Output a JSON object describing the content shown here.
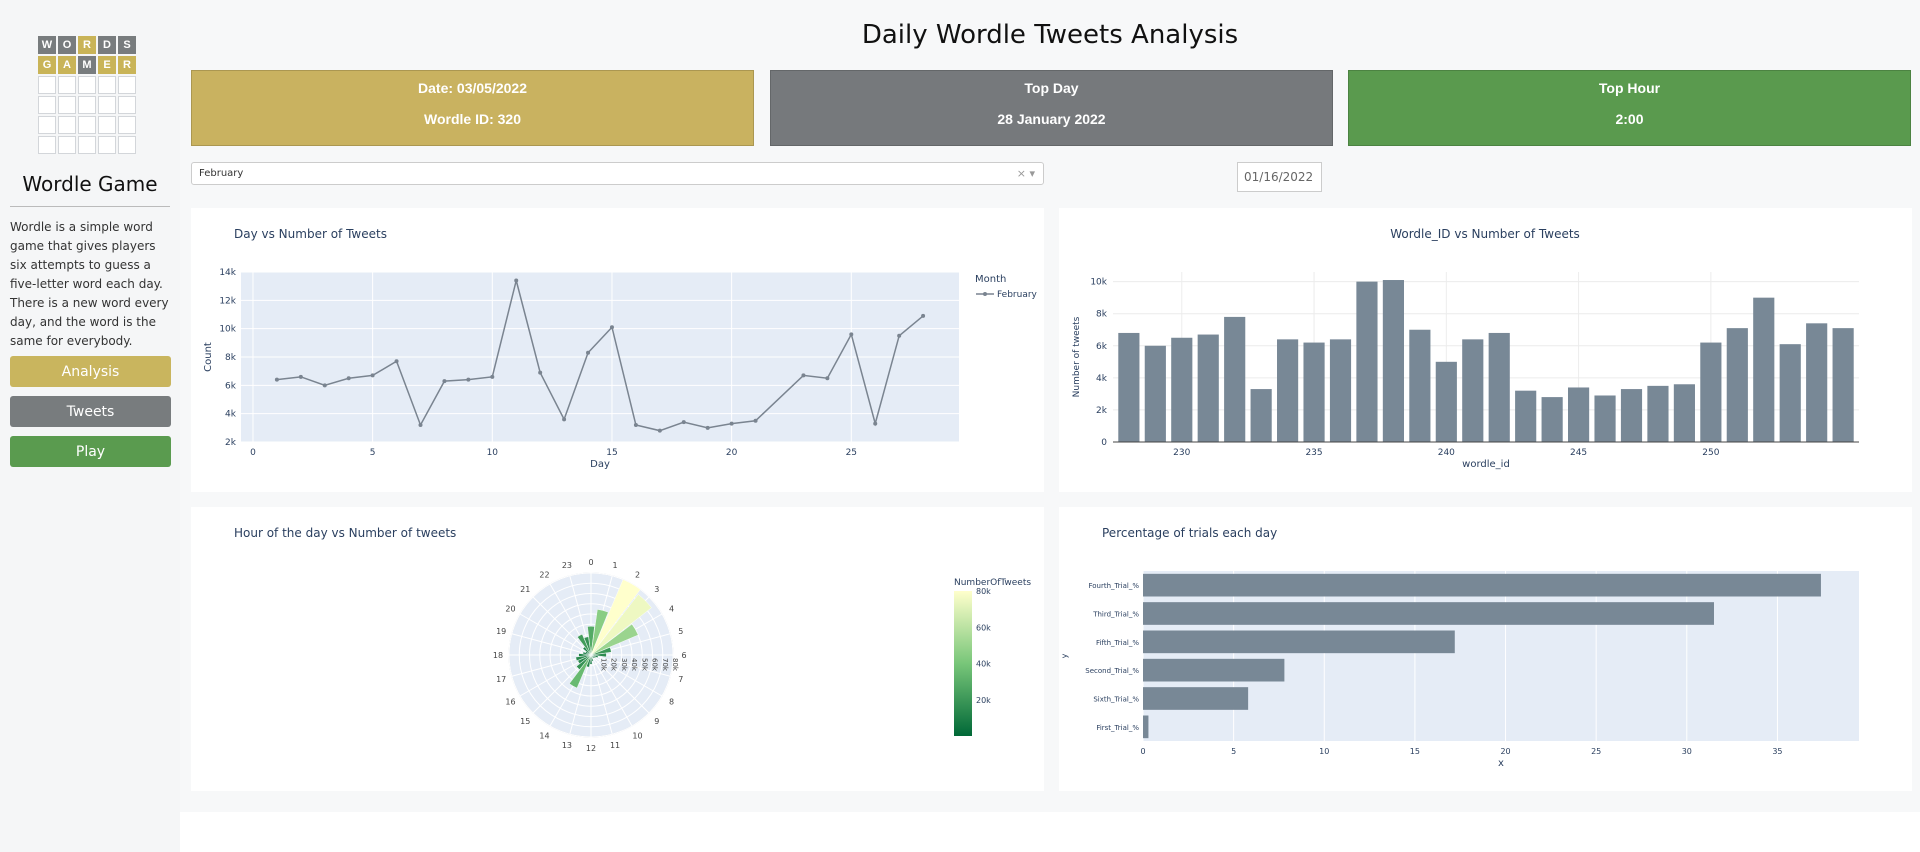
{
  "sidebar": {
    "logo": {
      "row1": [
        "W",
        "O",
        "R",
        "D",
        "S"
      ],
      "row2": [
        "G",
        "A",
        "M",
        "E",
        "R"
      ],
      "row1_colors": [
        "g",
        "g",
        "y",
        "g",
        "g"
      ],
      "row2_colors": [
        "y",
        "y",
        "g",
        "y",
        "y"
      ]
    },
    "title": "Wordle Game",
    "description": "Wordle is a simple word game that gives players six attempts to guess a five-letter word each day. There is a new word every day, and the word is the same for everybody.",
    "nav": [
      {
        "label": "Analysis",
        "color": "#c9b55e"
      },
      {
        "label": "Tweets",
        "color": "#787c7e"
      },
      {
        "label": "Play",
        "color": "#5a9b4f"
      }
    ]
  },
  "header": {
    "title": "Daily Wordle Tweets Analysis"
  },
  "cards": [
    {
      "line1": "Date: 03/05/2022",
      "line2": "Wordle ID: 320",
      "color": "#c9b260"
    },
    {
      "line1": "Top Day",
      "line2": "28 January 2022",
      "color": "#76797c"
    },
    {
      "line1": "Top Hour",
      "line2": "2:00",
      "color": "#5a9a4e"
    }
  ],
  "controls": {
    "month_dropdown": {
      "value": "February",
      "clear_icon": "×",
      "caret_icon": "▾"
    },
    "date_picker": {
      "value": "01/16/2022"
    }
  },
  "chart_data": [
    {
      "type": "line",
      "title": "Day vs Number of Tweets",
      "xlabel": "Day",
      "ylabel": "Count",
      "legend_title": "Month",
      "series": [
        {
          "name": "February",
          "x": [
            1,
            2,
            3,
            4,
            5,
            6,
            7,
            8,
            9,
            10,
            11,
            12,
            13,
            14,
            15,
            16,
            17,
            18,
            19,
            20,
            21,
            23,
            24,
            25,
            26,
            27,
            28
          ],
          "values": [
            6400,
            6600,
            6000,
            6500,
            6700,
            7700,
            3200,
            6300,
            6400,
            6600,
            13400,
            6900,
            3600,
            8300,
            10100,
            3200,
            2800,
            3400,
            3000,
            3300,
            3500,
            6700,
            6500,
            9600,
            3300,
            9500,
            10900
          ]
        }
      ],
      "xlim": [
        -0.5,
        29.5
      ],
      "ylim": [
        2000,
        14000
      ],
      "xticks": [
        "0",
        "5",
        "10",
        "15",
        "20",
        "25"
      ],
      "yticks": [
        "2k",
        "4k",
        "6k",
        "8k",
        "10k",
        "12k",
        "14k"
      ],
      "grid": true,
      "legend": "top-right"
    },
    {
      "type": "bar",
      "title": "Wordle_ID vs Number of Tweets",
      "xlabel": "wordle_id",
      "ylabel": "Number of tweets",
      "x": [
        228,
        229,
        230,
        231,
        232,
        233,
        234,
        235,
        236,
        237,
        238,
        239,
        240,
        241,
        242,
        243,
        244,
        245,
        246,
        247,
        248,
        249,
        250,
        251,
        252,
        253,
        254,
        255
      ],
      "values": [
        6800,
        6000,
        6500,
        6700,
        7800,
        3300,
        6400,
        6200,
        6400,
        10000,
        10100,
        7000,
        5000,
        6400,
        6800,
        3200,
        2800,
        3400,
        2900,
        3300,
        3500,
        3600,
        6200,
        7100,
        9000,
        6100,
        7400,
        7100
      ],
      "xlim": [
        227.4,
        255.6
      ],
      "ylim": [
        0,
        10600
      ],
      "xticks": [
        "230",
        "235",
        "240",
        "245",
        "250"
      ],
      "yticks": [
        "0",
        "2k",
        "4k",
        "6k",
        "8k",
        "10k"
      ]
    },
    {
      "type": "bar",
      "subtype": "polar",
      "title": "Hour of the day vs Number of tweets",
      "categories": [
        "0",
        "1",
        "2",
        "3",
        "4",
        "5",
        "6",
        "7",
        "8",
        "9",
        "10",
        "11",
        "12",
        "13",
        "14",
        "15",
        "16",
        "17",
        "18",
        "19",
        "20",
        "21",
        "22",
        "23"
      ],
      "values": [
        28000,
        45000,
        80000,
        75000,
        50000,
        20000,
        15000,
        7000,
        5000,
        4000,
        3000,
        6000,
        9000,
        12000,
        35000,
        18000,
        14000,
        15000,
        12000,
        8000,
        6000,
        10000,
        22000,
        18000
      ],
      "radial_ticks": [
        "10k",
        "20k",
        "30k",
        "40k",
        "50k",
        "60k",
        "70k",
        "80k"
      ],
      "rmax": 80000,
      "colorbar_title": "NumberOfTweets",
      "colorbar_ticks": [
        "20k",
        "40k",
        "60k",
        "80k"
      ]
    },
    {
      "type": "bar",
      "orientation": "horizontal",
      "title": "Percentage of trials each day",
      "xlabel": "x",
      "ylabel": "y",
      "categories": [
        "Fourth_Trial_%",
        "Third_Trial_%",
        "Fifth_Trial_%",
        "Second_Trial_%",
        "Sixth_Trial_%",
        "First_Trial_%"
      ],
      "values": [
        37.4,
        31.5,
        17.2,
        7.8,
        5.8,
        0.3
      ],
      "xlim": [
        0,
        39.5
      ],
      "xticks": [
        "0",
        "5",
        "10",
        "15",
        "20",
        "25",
        "30",
        "35"
      ]
    }
  ],
  "colors": {
    "bar": "#788896",
    "line": "#7a8490",
    "plot_bg": "#e5ecf6",
    "yellow": "#c9b458",
    "green": "#5a9a4e",
    "gray": "#787c7e"
  }
}
